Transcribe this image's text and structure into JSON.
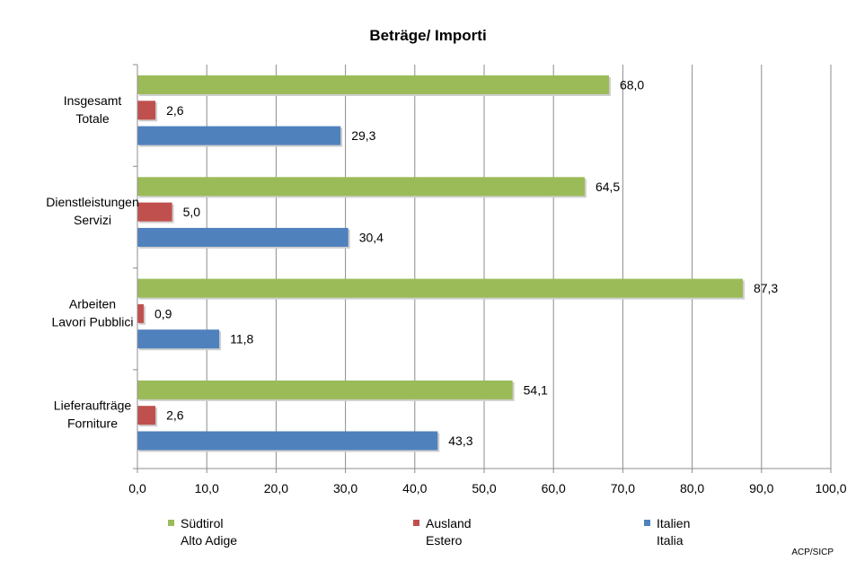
{
  "chart_data": {
    "type": "bar",
    "orientation": "horizontal",
    "title": "Beträge/ Importi",
    "categories": [
      [
        "Insgesamt",
        "Totale"
      ],
      [
        "Dienstleistungen",
        "Servizi"
      ],
      [
        "Arbeiten",
        "Lavori Pubblici"
      ],
      [
        "Lieferaufträge",
        "Forniture"
      ]
    ],
    "series": [
      {
        "name": [
          "Südtirol",
          "Alto Adige"
        ],
        "color": "#9BBB59",
        "values": [
          68.0,
          64.5,
          87.3,
          54.1
        ],
        "labels": [
          "68,0",
          "64,5",
          "87,3",
          "54,1"
        ]
      },
      {
        "name": [
          "Ausland",
          "Estero"
        ],
        "color": "#C0504D",
        "values": [
          2.6,
          5.0,
          0.9,
          2.6
        ],
        "labels": [
          "2,6",
          "5,0",
          "0,9",
          "2,6"
        ]
      },
      {
        "name": [
          "Italien",
          "Italia"
        ],
        "color": "#4F81BD",
        "values": [
          29.3,
          30.4,
          11.8,
          43.3
        ],
        "labels": [
          "29,3",
          "30,4",
          "11,8",
          "43,3"
        ]
      }
    ],
    "xlim": [
      0,
      100
    ],
    "xticks": [
      0,
      10,
      20,
      30,
      40,
      50,
      60,
      70,
      80,
      90,
      100
    ],
    "xtick_labels": [
      "0,0",
      "10,0",
      "20,0",
      "30,0",
      "40,0",
      "50,0",
      "60,0",
      "70,0",
      "80,0",
      "90,0",
      "100,0"
    ],
    "grid": "vertical",
    "legend": "bottom"
  },
  "source": "ACP/SICP"
}
